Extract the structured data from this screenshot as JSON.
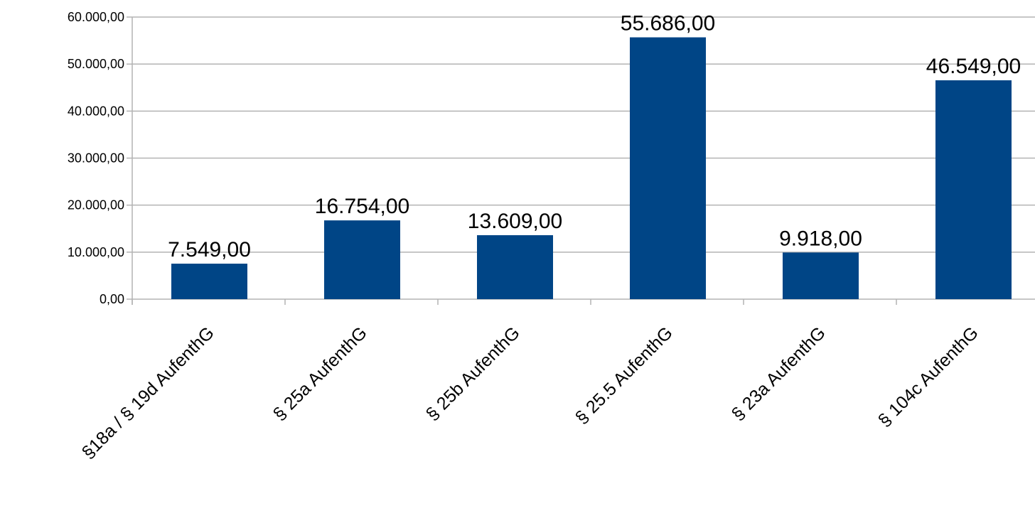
{
  "chart_data": {
    "type": "bar",
    "title": "",
    "xlabel": "",
    "ylabel": "",
    "categories": [
      "§18a / § 19d AufenthG",
      "§ 25a AufenthG",
      "§ 25b AufenthG",
      "§ 25.5 AufenthG",
      "§ 23a AufenthG",
      "§ 104c AufenthG"
    ],
    "values": [
      7549,
      16754,
      13609,
      55686,
      9918,
      46549
    ],
    "data_labels": [
      "7.549,00",
      "16.754,00",
      "13.609,00",
      "55.686,00",
      "9.918,00",
      "46.549,00"
    ],
    "ylim": [
      0,
      60000
    ],
    "y_ticks": [
      0,
      10000,
      20000,
      30000,
      40000,
      50000,
      60000
    ],
    "y_tick_labels": [
      "0,00",
      "10.000,00",
      "20.000,00",
      "30.000,00",
      "40.000,00",
      "50.000,00",
      "60.000,00"
    ],
    "grid": true,
    "legend": "none",
    "bar_color": "#004586",
    "grid_color": "#b3b3b3"
  }
}
